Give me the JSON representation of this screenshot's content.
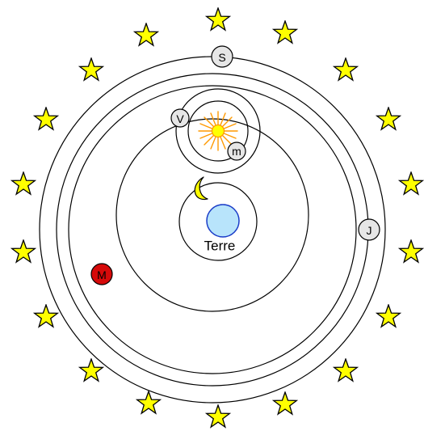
{
  "earth": {
    "label": "Terre",
    "color": "#b8e4fb"
  },
  "planets": {
    "saturn": {
      "label": "S",
      "color": "#e6e6e6"
    },
    "jupiter": {
      "label": "J",
      "color": "#e6e6e6"
    },
    "mars": {
      "label": "M",
      "color": "#d60a0a"
    },
    "venus": {
      "label": "V",
      "color": "#e6e6e6"
    },
    "mercury": {
      "label": "m",
      "color": "#e6e6e6"
    }
  },
  "sun": {
    "color": "#ffff00",
    "ray_color": "#ff9900"
  },
  "moon": {
    "color": "#ffff00"
  },
  "star_color": "#ffff00"
}
